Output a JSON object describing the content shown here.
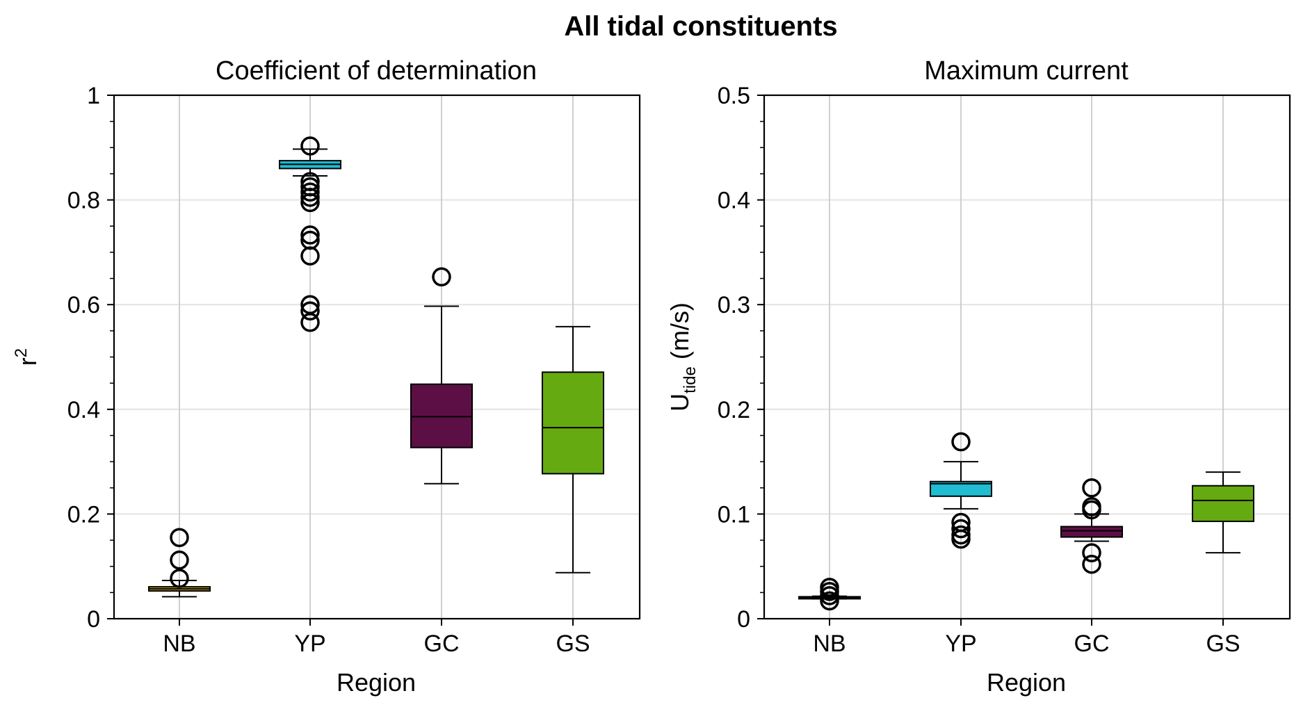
{
  "figure": {
    "title": "All tidal constituents"
  },
  "colors": {
    "NB": "#c9a227",
    "YP": "#1fbcd2",
    "GC": "#5c0f45",
    "GS": "#66aa11",
    "grid": "#e3e3e3",
    "grid_vertical": "#cfcfcf"
  },
  "chart_data": [
    {
      "type": "box",
      "title": "Coefficient of determination",
      "xlabel": "Region",
      "ylabel_main": "r",
      "ylabel_sup": "2",
      "ylabel_sub": "",
      "ylabel_rest": "",
      "ylim": [
        0,
        1
      ],
      "yticks": [
        0,
        0.2,
        0.4,
        0.6,
        0.8,
        1
      ],
      "ytick_labels": [
        "0",
        "0.2",
        "0.4",
        "0.6",
        "0.8",
        "1"
      ],
      "minor_step": 0.05,
      "grid": true,
      "categories": [
        "NB",
        "YP",
        "GC",
        "GS"
      ],
      "boxes": [
        {
          "category": "NB",
          "whisker_low": 0.042,
          "q1": 0.053,
          "median": 0.057,
          "q3": 0.061,
          "whisker_high": 0.073,
          "outliers": [
            0.155,
            0.112,
            0.077
          ]
        },
        {
          "category": "YP",
          "whisker_low": 0.846,
          "q1": 0.86,
          "median": 0.868,
          "q3": 0.875,
          "whisker_high": 0.897,
          "outliers": [
            0.903,
            0.835,
            0.825,
            0.815,
            0.805,
            0.795,
            0.733,
            0.723,
            0.693,
            0.6,
            0.588,
            0.566
          ]
        },
        {
          "category": "GC",
          "whisker_low": 0.258,
          "q1": 0.327,
          "median": 0.386,
          "q3": 0.448,
          "whisker_high": 0.597,
          "outliers": [
            0.653
          ]
        },
        {
          "category": "GS",
          "whisker_low": 0.088,
          "q1": 0.277,
          "median": 0.365,
          "q3": 0.471,
          "whisker_high": 0.558,
          "outliers": []
        }
      ]
    },
    {
      "type": "box",
      "title": "Maximum current",
      "xlabel": "Region",
      "ylabel_main": "U",
      "ylabel_sup": "",
      "ylabel_sub": "tide",
      "ylabel_rest": " (m/s)",
      "ylim": [
        0,
        0.5
      ],
      "yticks": [
        0,
        0.1,
        0.2,
        0.3,
        0.4,
        0.5
      ],
      "ytick_labels": [
        "0",
        "0.1",
        "0.2",
        "0.3",
        "0.4",
        "0.5"
      ],
      "minor_step": 0.025,
      "grid": true,
      "categories": [
        "NB",
        "YP",
        "GC",
        "GS"
      ],
      "boxes": [
        {
          "category": "NB",
          "whisker_low": 0.019,
          "q1": 0.0195,
          "median": 0.02,
          "q3": 0.021,
          "whisker_high": 0.0215,
          "outliers": [
            0.03,
            0.026,
            0.022,
            0.017
          ]
        },
        {
          "category": "YP",
          "whisker_low": 0.105,
          "q1": 0.117,
          "median": 0.129,
          "q3": 0.131,
          "whisker_high": 0.15,
          "outliers": [
            0.169,
            0.092,
            0.086,
            0.08,
            0.076
          ]
        },
        {
          "category": "GC",
          "whisker_low": 0.074,
          "q1": 0.078,
          "median": 0.084,
          "q3": 0.088,
          "whisker_high": 0.1,
          "outliers": [
            0.125,
            0.107,
            0.104,
            0.063,
            0.052
          ]
        },
        {
          "category": "GS",
          "whisker_low": 0.063,
          "q1": 0.093,
          "median": 0.113,
          "q3": 0.127,
          "whisker_high": 0.14,
          "outliers": []
        }
      ]
    }
  ]
}
